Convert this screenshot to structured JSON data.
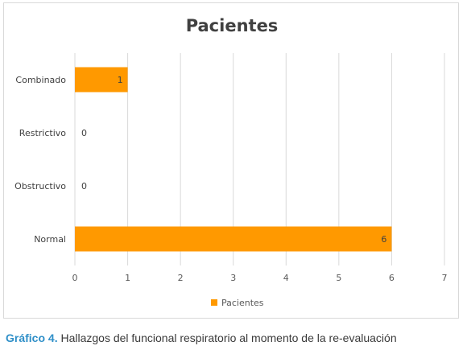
{
  "chart_data": {
    "type": "bar",
    "orientation": "horizontal",
    "title": "Pacientes",
    "categories": [
      "Combinado",
      "Restrictivo",
      "Obstructivo",
      "Normal"
    ],
    "series": [
      {
        "name": "Pacientes",
        "values": [
          1,
          0,
          0,
          6
        ],
        "color": "#ff9900"
      }
    ],
    "xlim": [
      0,
      7
    ],
    "x_ticks": [
      "0",
      "1",
      "2",
      "3",
      "4",
      "5",
      "6",
      "7"
    ],
    "data_labels": [
      "1",
      "0",
      "0",
      "6"
    ],
    "grid": "vertical",
    "legend_position": "bottom"
  },
  "caption": {
    "lead": "Gráfico 4.",
    "text": " Hallazgos del funcional respiratorio al momento de la re-evaluación"
  },
  "colors": {
    "bar": "#ff9900",
    "grid": "#d9d9d9",
    "caption_accent": "#2f8fc8"
  }
}
